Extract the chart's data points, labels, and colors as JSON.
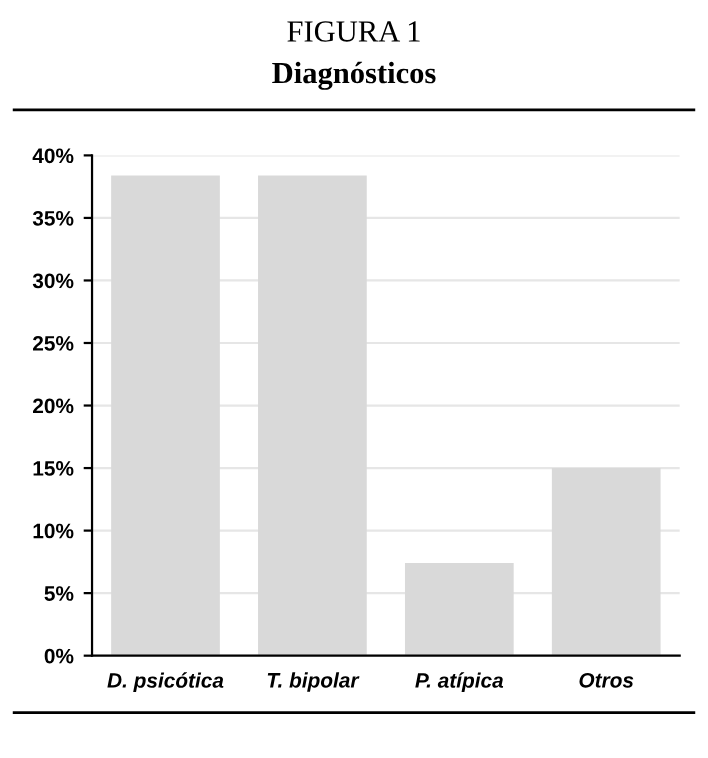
{
  "chart_data": {
    "type": "bar",
    "title": "FIGURA 1",
    "subtitle": "Diagnósticos",
    "categories": [
      "D. psicótica",
      "T. bipolar",
      "P. atípica",
      "Otros"
    ],
    "values": [
      38.4,
      38.4,
      7.4,
      15
    ],
    "color": "#d9d9d9",
    "ylim": [
      0,
      40
    ],
    "yticks": [
      {
        "value": 0,
        "label": "0%"
      },
      {
        "value": 5,
        "label": "5%"
      },
      {
        "value": 10,
        "label": "10%"
      },
      {
        "value": 15,
        "label": "15%"
      },
      {
        "value": 20,
        "label": "20%"
      },
      {
        "value": 25,
        "label": "25%"
      },
      {
        "value": 30,
        "label": "30%"
      },
      {
        "value": 35,
        "label": "35%"
      },
      {
        "value": 40,
        "label": "40%"
      }
    ],
    "grid": "y"
  }
}
